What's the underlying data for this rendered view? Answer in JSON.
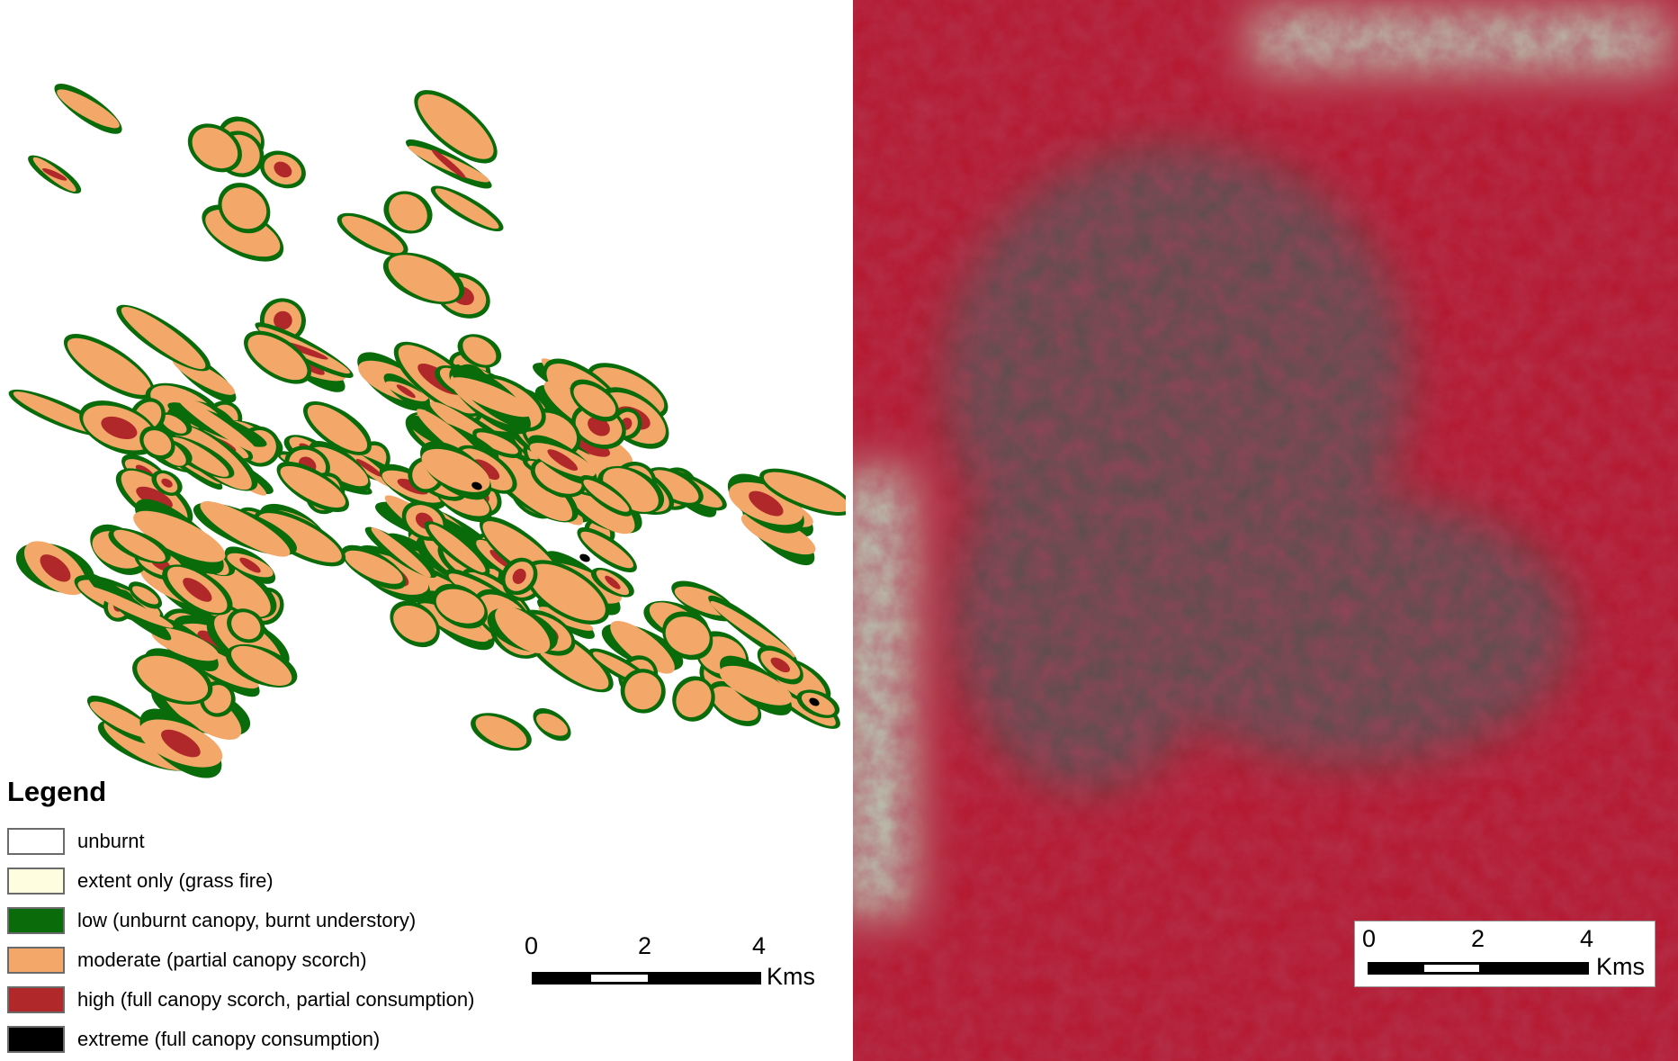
{
  "legend": {
    "title": "Legend",
    "items": [
      {
        "label": "unburnt",
        "color": "#ffffff"
      },
      {
        "label": "extent only (grass fire)",
        "color": "#fffde0"
      },
      {
        "label": "low (unburnt canopy, burnt understory)",
        "color": "#0a6b0a"
      },
      {
        "label": "moderate (partial canopy scorch)",
        "color": "#f3a86a"
      },
      {
        "label": "high (full canopy scorch, partial consumption)",
        "color": "#b0282a"
      },
      {
        "label": "extreme (full canopy consumption)",
        "color": "#000000"
      }
    ]
  },
  "scale_left": {
    "ticks": [
      "0",
      "2",
      "4"
    ],
    "unit": "Kms"
  },
  "scale_right": {
    "ticks": [
      "0",
      "2",
      "4"
    ],
    "unit": "Kms"
  },
  "satellite": {
    "base_color": "#b51a32",
    "burn_color": "#4e5a58",
    "clearing_color": "#b9c6b4"
  }
}
